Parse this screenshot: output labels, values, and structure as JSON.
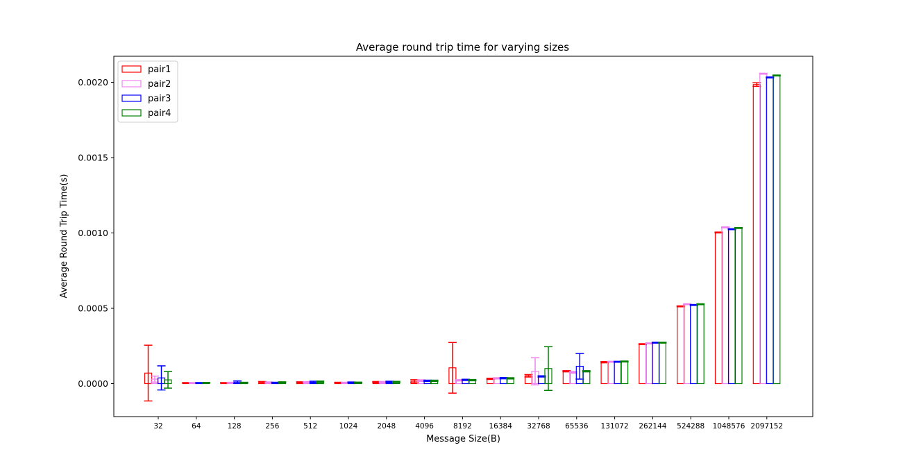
{
  "chart_data": {
    "type": "bar",
    "title": "Average round trip time for varying sizes",
    "xlabel": "Message Size(B)",
    "ylabel": "Average Round Trip Time(s)",
    "categories": [
      "32",
      "64",
      "128",
      "256",
      "512",
      "1024",
      "2048",
      "4096",
      "8192",
      "16384",
      "32768",
      "65536",
      "131072",
      "262144",
      "524288",
      "1048576",
      "2097152"
    ],
    "ylim": [
      -0.00022,
      0.00217
    ],
    "yticks": [
      0.0,
      0.0005,
      0.001,
      0.0015,
      0.002
    ],
    "ytick_labels": [
      "0.0000",
      "0.0005",
      "0.0010",
      "0.0015",
      "0.0020"
    ],
    "grid": false,
    "legend": "top-left",
    "bar_style": "unfilled-outline",
    "series": [
      {
        "name": "pair1",
        "color": "#ff0000",
        "values": [
          7e-05,
          5e-06,
          5e-06,
          8e-06,
          8e-06,
          6e-06,
          1e-05,
          1.6e-05,
          0.000105,
          3.2e-05,
          5.2e-05,
          8.2e-05,
          0.000142,
          0.000262,
          0.000513,
          0.001003,
          0.001985
        ],
        "errors": [
          0.000185,
          2e-06,
          2e-06,
          6e-06,
          4e-06,
          3e-06,
          4e-06,
          1e-05,
          0.000168,
          4e-06,
          8e-06,
          4e-06,
          4e-06,
          3e-06,
          3e-06,
          3e-06,
          1.2e-05
        ]
      },
      {
        "name": "pair2",
        "color": "#ee82ee",
        "values": [
          3e-05,
          5e-06,
          6e-06,
          7e-06,
          9e-06,
          6e-06,
          1e-05,
          2e-05,
          2.2e-05,
          3.5e-05,
          8.2e-05,
          7.5e-05,
          0.000145,
          0.000267,
          0.000527,
          0.001037,
          0.002057
        ],
        "errors": [
          2e-05,
          2e-06,
          3e-06,
          4e-06,
          4e-06,
          3e-06,
          4e-06,
          5e-06,
          4e-06,
          4e-06,
          9e-05,
          5e-06,
          3e-06,
          3e-06,
          3e-06,
          3e-06,
          3e-06
        ]
      },
      {
        "name": "pair3",
        "color": "#0000ff",
        "values": [
          3.8e-05,
          5e-06,
          1e-05,
          6e-06,
          1e-05,
          8e-06,
          1.1e-05,
          1.9e-05,
          2.5e-05,
          3.6e-05,
          4.8e-05,
          0.000115,
          0.000145,
          0.000272,
          0.000522,
          0.001025,
          0.002032
        ],
        "errors": [
          8e-05,
          2e-06,
          8e-06,
          3e-06,
          6e-06,
          3e-06,
          5e-06,
          4e-06,
          4e-06,
          4e-06,
          4e-06,
          8.5e-05,
          3e-06,
          3e-06,
          3e-06,
          3e-06,
          3e-06
        ]
      },
      {
        "name": "pair4",
        "color": "#008000",
        "values": [
          2.5e-05,
          6e-06,
          6e-06,
          8e-06,
          1.2e-05,
          7e-06,
          1.1e-05,
          1.9e-05,
          2.3e-05,
          3.5e-05,
          0.0001,
          8.2e-05,
          0.000147,
          0.000272,
          0.000527,
          0.001033,
          0.002045
        ],
        "errors": [
          5.5e-05,
          2e-06,
          3e-06,
          4e-06,
          5e-06,
          3e-06,
          4e-06,
          4e-06,
          4e-06,
          4e-06,
          0.000145,
          4e-06,
          3e-06,
          3e-06,
          3e-06,
          3e-06,
          3e-06
        ]
      }
    ]
  }
}
